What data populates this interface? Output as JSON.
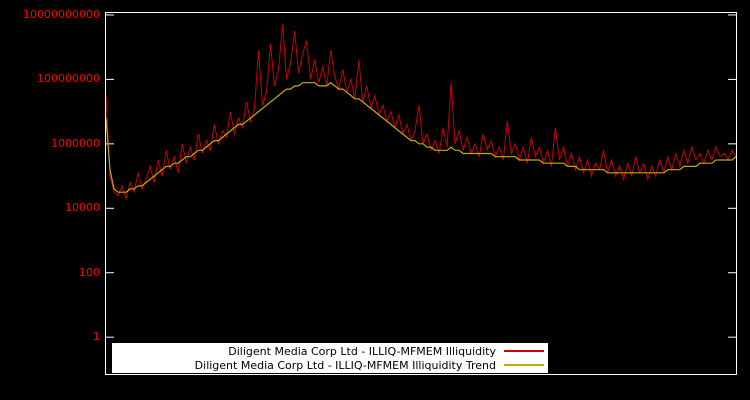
{
  "colors": {
    "background": "#000000",
    "plot_border": "#ffffff",
    "tick_label": "#ff0000",
    "legend_background": "#ffffff",
    "legend_text": "#000000"
  },
  "chart_data": {
    "type": "line",
    "title": "",
    "xlabel": "",
    "ylabel": "",
    "grid": false,
    "legend_position": "bottom-center",
    "y_axis": {
      "scale": "log",
      "plot_top": 11500000000.0,
      "plot_bottom": 0.072,
      "tick_values": [
        10000000000.0,
        100000000.0,
        1000000.0,
        10000.0,
        100,
        1
      ],
      "tick_labels": [
        "10000000000",
        "100000000",
        "1000000",
        "10000",
        "100",
        "1"
      ]
    },
    "legend": {
      "entries": [
        {
          "label": "Diligent Media Corp Ltd - ILLIQ-MFMEM Illiquidity",
          "color": "#cc0000"
        },
        {
          "label": "Diligent Media Corp Ltd - ILLIQ-MFMEM Illiquidity Trend",
          "color": "#c8a800"
        }
      ]
    },
    "series": [
      {
        "name": "Diligent Media Corp Ltd - ILLIQ-MFMEM Illiquidity",
        "color": "#cc0000",
        "values": [
          32000000.0,
          100000.0,
          32000.0,
          25000.0,
          50000.0,
          20000.0,
          63000.0,
          32000.0,
          126000.0,
          40000.0,
          79000.0,
          200000.0,
          63000.0,
          316000.0,
          100000.0,
          630000.0,
          158000.0,
          400000.0,
          126000.0,
          1000000.0,
          250000.0,
          790000.0,
          316000.0,
          2000000.0,
          500000.0,
          1260000.0,
          630000.0,
          4000000.0,
          1000000.0,
          2500000.0,
          1580000.0,
          10000000.0,
          2000000.0,
          6300000.0,
          3160000.0,
          20000000.0,
          5000000.0,
          12600000.0,
          790000000.0,
          15800000.0,
          40000000.0,
          1260000000.0,
          63000000.0,
          200000000.0,
          5000000000.0,
          100000000.0,
          316000000.0,
          3160000000.0,
          158000000.0,
          630000000.0,
          1580000000.0,
          100000000.0,
          400000000.0,
          79000000.0,
          250000000.0,
          63000000.0,
          790000000.0,
          126000000.0,
          50000000.0,
          200000000.0,
          40000000.0,
          100000000.0,
          25000000.0,
          400000000.0,
          20000000.0,
          63000000.0,
          12600000.0,
          31600000.0,
          7900000.0,
          15800000.0,
          5000000.0,
          10000000.0,
          3160000.0,
          7900000.0,
          2000000.0,
          4000000.0,
          1260000.0,
          2500000.0,
          15800000.0,
          1000000.0,
          2000000.0,
          630000.0,
          1260000.0,
          500000.0,
          3160000.0,
          790000.0,
          79000000.0,
          1000000.0,
          2500000.0,
          630000.0,
          1580000.0,
          500000.0,
          1000000.0,
          400000.0,
          2000000.0,
          630000.0,
          1260000.0,
          400000.0,
          790000.0,
          316000.0,
          5000000.0,
          500000.0,
          1000000.0,
          316000.0,
          790000.0,
          250000.0,
          1580000.0,
          400000.0,
          790000.0,
          250000.0,
          630000.0,
          200000.0,
          3160000.0,
          316000.0,
          790000.0,
          200000.0,
          500000.0,
          158000.0,
          400000.0,
          126000.0,
          316000.0,
          100000.0,
          250000.0,
          158000.0,
          630000.0,
          126000.0,
          316000.0,
          100000.0,
          200000.0,
          79000.0,
          250000.0,
          100000.0,
          400000.0,
          126000.0,
          250000.0,
          79000.0,
          200000.0,
          100000.0,
          316000.0,
          126000.0,
          400000.0,
          158000.0,
          500000.0,
          200000.0,
          630000.0,
          250000.0,
          790000.0,
          316000.0,
          500000.0,
          250000.0,
          630000.0,
          316000.0,
          790000.0,
          400000.0,
          500000.0,
          316000.0,
          630000.0,
          400000.0
        ]
      },
      {
        "name": "Diligent Media Corp Ltd - ILLIQ-MFMEM Illiquidity Trend",
        "color": "#c8a800",
        "values": [
          6300000.0,
          158000.0,
          40000.0,
          31600.0,
          31600.0,
          31600.0,
          40000.0,
          40000.0,
          50000.0,
          50000.0,
          63000.0,
          79000.0,
          100000.0,
          126000.0,
          158000.0,
          200000.0,
          200000.0,
          250000.0,
          250000.0,
          316000.0,
          400000.0,
          400000.0,
          500000.0,
          630000.0,
          630000.0,
          790000.0,
          1000000.0,
          1260000.0,
          1260000.0,
          1580000.0,
          2000000.0,
          2500000.0,
          3160000.0,
          4000000.0,
          4000000.0,
          5000000.0,
          6300000.0,
          7900000.0,
          10000000.0,
          12600000.0,
          15800000.0,
          20000000.0,
          25000000.0,
          31600000.0,
          40000000.0,
          50000000.0,
          50000000.0,
          63000000.0,
          63000000.0,
          79000000.0,
          79000000.0,
          79000000.0,
          79000000.0,
          63000000.0,
          63000000.0,
          63000000.0,
          79000000.0,
          63000000.0,
          50000000.0,
          50000000.0,
          40000000.0,
          31600000.0,
          25000000.0,
          25000000.0,
          20000000.0,
          15800000.0,
          12600000.0,
          10000000.0,
          7900000.0,
          6300000.0,
          5000000.0,
          4000000.0,
          3160000.0,
          2500000.0,
          2000000.0,
          1580000.0,
          1260000.0,
          1260000.0,
          1000000.0,
          1000000.0,
          790000.0,
          790000.0,
          630000.0,
          630000.0,
          630000.0,
          630000.0,
          790000.0,
          630000.0,
          630000.0,
          500000.0,
          500000.0,
          500000.0,
          500000.0,
          500000.0,
          500000.0,
          500000.0,
          500000.0,
          400000.0,
          400000.0,
          400000.0,
          400000.0,
          400000.0,
          400000.0,
          316000.0,
          316000.0,
          316000.0,
          316000.0,
          316000.0,
          316000.0,
          250000.0,
          250000.0,
          250000.0,
          250000.0,
          250000.0,
          250000.0,
          200000.0,
          200000.0,
          200000.0,
          158000.0,
          158000.0,
          158000.0,
          158000.0,
          158000.0,
          158000.0,
          158000.0,
          126000.0,
          126000.0,
          126000.0,
          126000.0,
          126000.0,
          126000.0,
          126000.0,
          126000.0,
          126000.0,
          126000.0,
          126000.0,
          126000.0,
          126000.0,
          126000.0,
          126000.0,
          158000.0,
          158000.0,
          158000.0,
          158000.0,
          200000.0,
          200000.0,
          200000.0,
          200000.0,
          250000.0,
          250000.0,
          250000.0,
          250000.0,
          316000.0,
          316000.0,
          316000.0,
          316000.0,
          316000.0,
          400000.0
        ]
      }
    ]
  }
}
